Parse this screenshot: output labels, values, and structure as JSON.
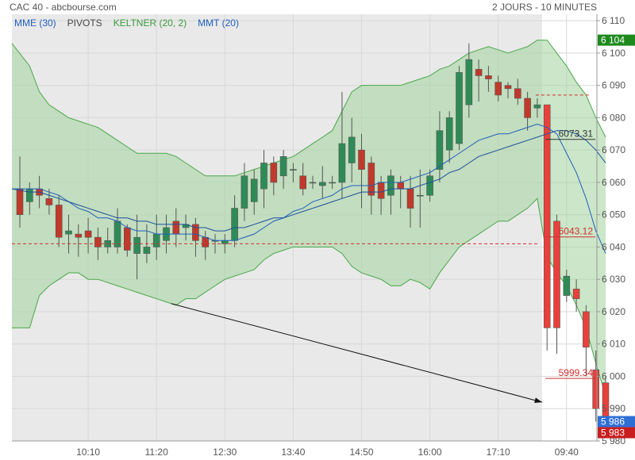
{
  "header": {
    "title": "CAC 40 - abcbourse.com",
    "period": "2 JOURS - 10 MINUTES"
  },
  "legend": [
    {
      "label": "MME (30)",
      "color": "#1f5fbf"
    },
    {
      "label": "PIVOTS",
      "color": "#444444"
    },
    {
      "label": "KELTNER (20, 2)",
      "color": "#3a9a3a"
    },
    {
      "label": "MMT (20)",
      "color": "#1f5fbf"
    }
  ],
  "colors": {
    "up": "#2e8b57",
    "down": "#c0392b",
    "down_today": "#e8403a",
    "keltner_fill": "#a9d6a4",
    "keltner_line": "#4aa84a",
    "ema": "#1f5fbf",
    "bg_prev": "#e9e9e9"
  },
  "chart_data": {
    "type": "candlestick",
    "y_range": [
      5980,
      6112
    ],
    "y_ticks": [
      "6 110",
      "6 100",
      "6 090",
      "6 080",
      "6 070",
      "6 060",
      "6 050",
      "6 040",
      "6 030",
      "6 020",
      "6 010",
      "6 000",
      "5 990",
      "5 980"
    ],
    "y_tick_values": [
      6110,
      6100,
      6090,
      6080,
      6070,
      6060,
      6050,
      6040,
      6030,
      6020,
      6010,
      6000,
      5990,
      5980
    ],
    "x_tick_labels": [
      "10:10",
      "11:20",
      "12:30",
      "13:40",
      "14:50",
      "16:00",
      "17:10",
      "09:40"
    ],
    "x_tick_index": [
      7,
      14,
      21,
      28,
      35,
      42,
      49,
      56
    ],
    "candles": [
      [
        6058,
        6050,
        6068,
        6046
      ],
      [
        6054,
        6058,
        6060,
        6050
      ],
      [
        6058,
        6056,
        6062,
        6052
      ],
      [
        6055,
        6053,
        6058,
        6050
      ],
      [
        6053,
        6043,
        6056,
        6040
      ],
      [
        6044,
        6045,
        6050,
        6038
      ],
      [
        6044,
        6043,
        6047,
        6037
      ],
      [
        6045,
        6043,
        6049,
        6038
      ],
      [
        6043,
        6040,
        6046,
        6036
      ],
      [
        6040,
        6042,
        6046,
        6038
      ],
      [
        6040,
        6048,
        6052,
        6038
      ],
      [
        6046,
        6039,
        6047,
        6037
      ],
      [
        6038,
        6043,
        6050,
        6030
      ],
      [
        6038,
        6040,
        6047,
        6035
      ],
      [
        6040,
        6044,
        6050,
        6036
      ],
      [
        6042,
        6046,
        6050,
        6038
      ],
      [
        6048,
        6044,
        6052,
        6040
      ],
      [
        6046,
        6047,
        6050,
        6042
      ],
      [
        6047,
        6042,
        6049,
        6037
      ],
      [
        6043,
        6040,
        6045,
        6036
      ],
      [
        6042,
        6042,
        6044,
        6038
      ],
      [
        6041,
        6042,
        6044,
        6038
      ],
      [
        6042,
        6052,
        6056,
        6040
      ],
      [
        6052,
        6062,
        6066,
        6048
      ],
      [
        6054,
        6061,
        6064,
        6050
      ],
      [
        6058,
        6066,
        6070,
        6052
      ],
      [
        6066,
        6060,
        6068,
        6056
      ],
      [
        6062,
        6068,
        6070,
        6058
      ],
      [
        6064,
        6064,
        6066,
        6060
      ],
      [
        6062,
        6058,
        6066,
        6056
      ],
      [
        6060,
        6060,
        6062,
        6058
      ],
      [
        6059,
        6060,
        6065,
        6055
      ],
      [
        6060,
        6060,
        6062,
        6058
      ],
      [
        6060,
        6072,
        6088,
        6055
      ],
      [
        6066,
        6074,
        6080,
        6060
      ],
      [
        6070,
        6064,
        6075,
        6052
      ],
      [
        6066,
        6056,
        6068,
        6050
      ],
      [
        6060,
        6055,
        6062,
        6050
      ],
      [
        6056,
        6062,
        6064,
        6050
      ],
      [
        6060,
        6058,
        6062,
        6052
      ],
      [
        6058,
        6052,
        6062,
        6046
      ],
      [
        6056,
        6056,
        6064,
        6046
      ],
      [
        6056,
        6062,
        6064,
        6054
      ],
      [
        6064,
        6076,
        6082,
        6060
      ],
      [
        6070,
        6080,
        6082,
        6066
      ],
      [
        6072,
        6094,
        6096,
        6070
      ],
      [
        6084,
        6098,
        6103,
        6080
      ],
      [
        6095,
        6093,
        6098,
        6085
      ],
      [
        6093,
        6092,
        6096,
        6088
      ],
      [
        6091,
        6087,
        6093,
        6085
      ],
      [
        6090,
        6089,
        6091,
        6086
      ],
      [
        6089,
        6086,
        6092,
        6084
      ],
      [
        6086,
        6080,
        6088,
        6076
      ],
      [
        6083,
        6084,
        6086,
        6080
      ],
      [
        6084,
        6015,
        6084,
        6008
      ],
      [
        6048,
        6015,
        6050,
        6007
      ],
      [
        6025,
        6031,
        6033,
        6023
      ],
      [
        6027,
        6024,
        6030,
        6020
      ],
      [
        6020,
        6009,
        6022,
        6000
      ],
      [
        6002,
        5990,
        6008,
        5986
      ],
      [
        5998,
        5985,
        6000,
        5983
      ]
    ],
    "today_start_index": 54,
    "keltner_upper": [
      6103,
      6096,
      6088,
      6084,
      6082,
      6080,
      6079,
      6078,
      6077,
      6075,
      6073,
      6071,
      6069,
      6069,
      6069,
      6069,
      6068,
      6066,
      6064,
      6062,
      6062,
      6062,
      6062,
      6063,
      6064,
      6065,
      6066,
      6067,
      6068,
      6070,
      6072,
      6074,
      6076,
      6082,
      6088,
      6090,
      6090,
      6090,
      6090,
      6090,
      6091,
      6092,
      6093,
      6095,
      6096,
      6098,
      6100,
      6101,
      6102,
      6101,
      6100,
      6101,
      6102,
      6104,
      6104,
      6100,
      6096,
      6091,
      6087,
      6080,
      6074
    ],
    "keltner_lower": [
      6015,
      6015,
      6025,
      6028,
      6030,
      6032,
      6032,
      6030,
      6030,
      6029,
      6028,
      6027,
      6026,
      6025,
      6024,
      6023,
      6022,
      6024,
      6024,
      6026,
      6028,
      6030,
      6031,
      6032,
      6033,
      6036,
      6038,
      6039,
      6040,
      6040,
      6040,
      6040,
      6040,
      6038,
      6034,
      6032,
      6031,
      6030,
      6028,
      6028,
      6030,
      6029,
      6027,
      6032,
      6036,
      6040,
      6042,
      6044,
      6046,
      6048,
      6048,
      6050,
      6052,
      6055,
      6037,
      6032,
      6028,
      6022,
      6015,
      6004,
      5994
    ],
    "mmt20": [
      6058,
      6058,
      6058,
      6057,
      6056,
      6054,
      6052,
      6051,
      6049,
      6049,
      6048,
      6046,
      6045,
      6045,
      6044,
      6044,
      6044,
      6044,
      6044,
      6043,
      6042,
      6042,
      6042,
      6043,
      6044,
      6046,
      6048,
      6049,
      6051,
      6052,
      6054,
      6055,
      6056,
      6058,
      6059,
      6059,
      6059,
      6060,
      6060,
      6060,
      6061,
      6062,
      6063,
      6065,
      6067,
      6069,
      6071,
      6073,
      6074,
      6075,
      6075,
      6076,
      6077,
      6078,
      6077,
      6075,
      6069,
      6063,
      6055,
      6045,
      6038
    ],
    "mme30": [
      6058,
      6057,
      6057,
      6056,
      6055,
      6054,
      6053,
      6052,
      6051,
      6050,
      6049,
      6049,
      6048,
      6048,
      6047,
      6047,
      6047,
      6047,
      6046,
      6046,
      6045,
      6045,
      6046,
      6046,
      6047,
      6048,
      6049,
      6049,
      6050,
      6051,
      6052,
      6053,
      6054,
      6055,
      6056,
      6057,
      6057,
      6057,
      6058,
      6058,
      6058,
      6059,
      6060,
      6061,
      6063,
      6064,
      6066,
      6068,
      6069,
      6070,
      6071,
      6072,
      6073,
      6074,
      6075,
      6076,
      6076,
      6075,
      6073,
      6070,
      6066
    ],
    "pivot_levels": [
      {
        "value": 6087,
        "color": "#d03030",
        "style": "dashed",
        "from_index": 53,
        "label": ""
      },
      {
        "value": 6073.31,
        "color": "#333333",
        "style": "solid",
        "from_index": 54,
        "label": "6073.31"
      },
      {
        "value": 6043.12,
        "color": "#d03030",
        "style": "solid",
        "from_index": 54,
        "label": "6043.12"
      },
      {
        "value": 6041,
        "color": "#d03030",
        "style": "dashed",
        "from_index": 0,
        "to_index": 53,
        "label": ""
      },
      {
        "value": 5999.34,
        "color": "#d03030",
        "style": "solid",
        "from_index": 54,
        "label": "5999.34"
      }
    ],
    "price_tags": [
      {
        "value": 6104,
        "label": "6 104",
        "color": "#1e8a1e"
      },
      {
        "value": 5986,
        "label": "5 986",
        "color": "#2e6fd6"
      },
      {
        "value": 5983,
        "label": "5 983",
        "color": "#c81e1e"
      }
    ],
    "trend_arrow": {
      "from": [
        15.5,
        6022.5
      ],
      "to": [
        53.5,
        5992
      ]
    }
  }
}
